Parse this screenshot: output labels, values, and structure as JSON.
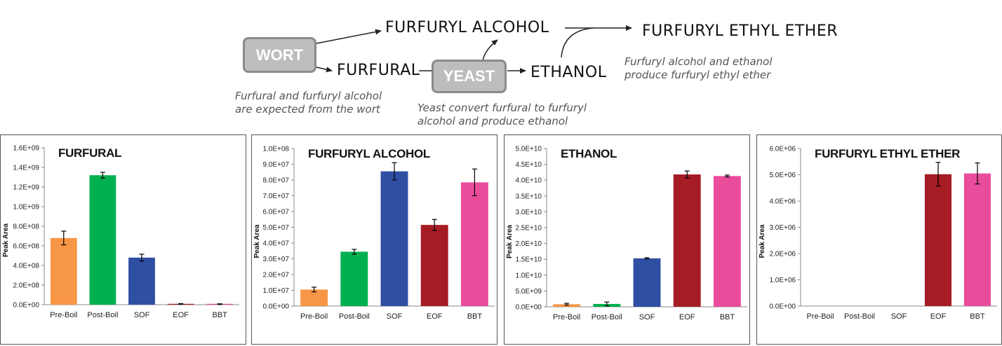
{
  "diagram": {
    "wort": "WORT",
    "yeast": "YEAST",
    "furfuryl_alcohol": "FURFURYL ALCOHOL",
    "furfural": "FURFURAL",
    "ethanol": "ETHANOL",
    "furfuryl_ethyl_ether": "FURFURYL ETHYL ETHER",
    "note_wort": [
      "Furfural and furfuryl alcohol",
      "are expected from the wort"
    ],
    "note_yeast": [
      "Yeast convert furfural to furfuryl",
      "alcohol and produce ethanol"
    ],
    "note_ether": [
      "Furfuryl alcohol and ethanol",
      "produce furfuryl ethyl ether"
    ]
  },
  "colors": {
    "Pre-Boil": "#f79646",
    "Post-Boil": "#00b050",
    "SOF": "#2f4fa2",
    "EOF": "#a51c24",
    "BBT": "#ea4c9c"
  },
  "chart_data": [
    {
      "type": "bar",
      "title": "FURFURAL",
      "ylabel": "Peak Area",
      "categories": [
        "Pre-Boil",
        "Post-Boil",
        "SOF",
        "EOF",
        "BBT"
      ],
      "values": [
        680000000.0,
        1320000000.0,
        480000000.0,
        8000000.0,
        6000000.0
      ],
      "errors": [
        70000000.0,
        30000000.0,
        35000000.0,
        3000000.0,
        3000000.0
      ],
      "ylim": [
        0,
        1600000000.0
      ],
      "yticks": [
        "0.0E+00",
        "2.0E+08",
        "4.0E+08",
        "6.0E+08",
        "8.0E+08",
        "1.0E+09",
        "1.2E+09",
        "1.4E+09",
        "1.6E+09"
      ],
      "grid": false
    },
    {
      "type": "bar",
      "title": "FURFURYL ALCOHOL",
      "ylabel": "Peak Area",
      "categories": [
        "Pre-Boil",
        "Post-Boil",
        "SOF",
        "EOF",
        "BBT"
      ],
      "values": [
        10500000.0,
        34500000.0,
        85500000.0,
        51500000.0,
        78500000.0
      ],
      "errors": [
        1500000.0,
        1500000.0,
        5500000.0,
        3500000.0,
        8500000.0
      ],
      "ylim": [
        0,
        100000000.0
      ],
      "yticks": [
        "0.0E+00",
        "1.0E+07",
        "2.0E+07",
        "3.0E+07",
        "4.0E+07",
        "5.0E+07",
        "6.0E+07",
        "7.0E+07",
        "8.0E+07",
        "9.0E+07",
        "1.0E+08"
      ],
      "grid": false
    },
    {
      "type": "bar",
      "title": "ETHANOL",
      "ylabel": "Peak Area",
      "categories": [
        "Pre-Boil",
        "Post-Boil",
        "SOF",
        "EOF",
        "BBT"
      ],
      "values": [
        800000000.0,
        900000000.0,
        15300000000.0,
        41800000000.0,
        41300000000.0
      ],
      "errors": [
        300000000.0,
        600000000.0,
        200000000.0,
        1100000000.0,
        300000000.0
      ],
      "ylim": [
        0,
        50000000000.0
      ],
      "yticks": [
        "0.0E+00",
        "5.0E+09",
        "1.0E+10",
        "1.5E+10",
        "2.0E+10",
        "2.5E+10",
        "3.0E+10",
        "3.5E+10",
        "4.0E+10",
        "4.5E+10",
        "5.0E+10"
      ],
      "grid": false
    },
    {
      "type": "bar",
      "title": "FURFURYL ETHYL ETHER",
      "ylabel": "Peak Area",
      "categories": [
        "Pre-Boil",
        "Post-Boil",
        "SOF",
        "EOF",
        "BBT"
      ],
      "values": [
        0,
        0,
        0,
        5020000.0,
        5050000.0
      ],
      "errors": [
        0,
        0,
        0,
        450000.0,
        400000.0
      ],
      "ylim": [
        0,
        6000000.0
      ],
      "yticks": [
        "0.0E+00",
        "1.0E+06",
        "2.0E+06",
        "3.0E+06",
        "4.0E+06",
        "5.0E+06",
        "6.0E+06"
      ],
      "grid": false
    }
  ]
}
